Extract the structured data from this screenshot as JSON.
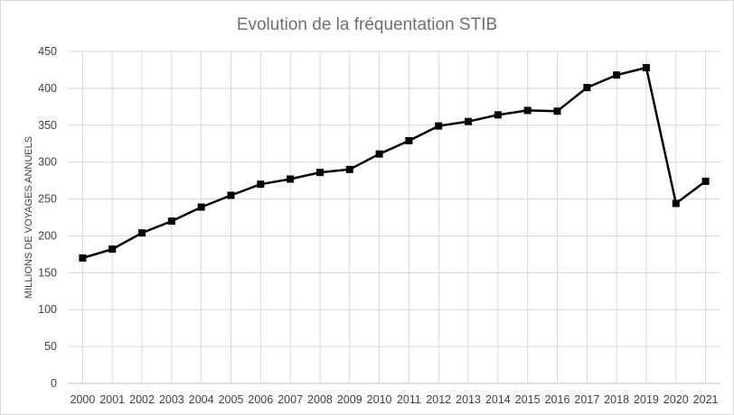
{
  "chart_data": {
    "type": "line",
    "title": "Evolution  de la fréquentation  STIB",
    "xlabel": "",
    "ylabel": "MILLIONS DE VOYAGES ANNUELS",
    "ylim": [
      0,
      450
    ],
    "ytick_step": 50,
    "grid": {
      "horizontal": true,
      "vertical": true
    },
    "legend": "none",
    "line_color": "#000000",
    "grid_color": "#d9d9d9",
    "categories": [
      "2000",
      "2001",
      "2002",
      "2003",
      "2004",
      "2005",
      "2006",
      "2007",
      "2008",
      "2009",
      "2010",
      "2011",
      "2012",
      "2013",
      "2014",
      "2015",
      "2016",
      "2017",
      "2018",
      "2019",
      "2020",
      "2021"
    ],
    "series": [
      {
        "values": [
          170,
          182,
          204,
          220,
          239,
          255,
          270,
          277,
          286,
          290,
          311,
          329,
          349,
          355,
          364,
          370,
          369,
          401,
          418,
          428,
          244,
          274
        ],
        "marker": "square"
      }
    ]
  }
}
